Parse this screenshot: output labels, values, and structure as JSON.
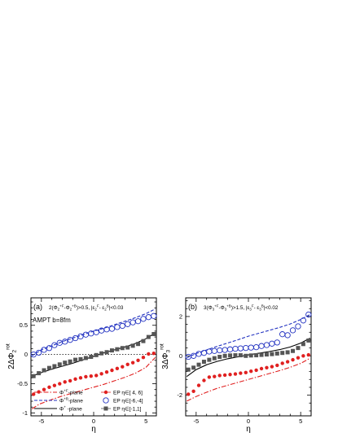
{
  "chart_data": [
    {
      "type": "scatter",
      "panel_label": "(a)",
      "header": "2(Φ2+F−Φ2+B)>0.5, |ε2F−ε2B|<0.03",
      "header_parts": {
        "lead": "2(Φ",
        "s1": "2",
        "p1": "+F",
        "mid": "-Φ",
        "s2": "2",
        "p2": "+B",
        "tail": ")>0.5, |ε",
        "s3": "2",
        "p3": "F",
        "dash": "- ε",
        "s4": "2",
        "p4": "B",
        "end": "|<0.03"
      },
      "annotation": "AMPT b=8fm",
      "ylabel": "2ΔΦ2rot",
      "ylabel_parts": {
        "coef": "2ΔΦ",
        "sub": "2",
        "sup": "rot"
      },
      "xlabel": "η",
      "xlim": [
        -6,
        6
      ],
      "ylim": [
        -1.05,
        0.97
      ],
      "xticks": [
        "-5",
        "0",
        "5"
      ],
      "xtick_values": [
        -5,
        0,
        5
      ],
      "yticks": [
        "-1",
        "-0.5",
        "0",
        "0.5"
      ],
      "ytick_values": [
        -1,
        -0.5,
        0,
        0.5
      ],
      "zero_line": true,
      "x": [
        -5.75,
        -5.25,
        -4.75,
        -4.25,
        -3.75,
        -3.25,
        -2.75,
        -2.25,
        -1.75,
        -1.25,
        -0.75,
        -0.25,
        0.25,
        0.75,
        1.25,
        1.75,
        2.25,
        2.75,
        3.25,
        3.75,
        4.25,
        4.75,
        5.25,
        5.75
      ],
      "lines": [
        {
          "name": "Φ+F-plane",
          "style": "dashdot",
          "color": "#e02020",
          "x": [
            -5.9,
            -5.2,
            -4.0,
            -3.0,
            -2.0,
            -1.0,
            0.0,
            1.0,
            2.0,
            3.0,
            4.0,
            5.0,
            5.9
          ],
          "values": [
            -0.93,
            -0.85,
            -0.77,
            -0.71,
            -0.66,
            -0.61,
            -0.56,
            -0.51,
            -0.45,
            -0.39,
            -0.32,
            -0.22,
            -0.05
          ]
        },
        {
          "name": "Φ+B-plane",
          "style": "dashed",
          "color": "#2030c0",
          "x": [
            -5.9,
            -5.0,
            -4.0,
            -3.0,
            -2.0,
            -1.0,
            0.0,
            1.0,
            2.0,
            3.0,
            4.0,
            5.0,
            5.9
          ],
          "values": [
            -0.02,
            0.08,
            0.15,
            0.22,
            0.28,
            0.34,
            0.4,
            0.45,
            0.51,
            0.57,
            0.63,
            0.7,
            0.78
          ]
        },
        {
          "name": "Φ+-plane",
          "style": "solid",
          "color": "#000000",
          "x": [
            -5.9,
            -5.0,
            -4.0,
            -3.0,
            -2.0,
            -1.0,
            0.0,
            1.0,
            2.0,
            3.0,
            4.0,
            5.0,
            5.9
          ],
          "values": [
            -0.37,
            -0.31,
            -0.25,
            -0.2,
            -0.15,
            -0.09,
            -0.03,
            0.03,
            0.08,
            0.13,
            0.19,
            0.27,
            0.37
          ]
        }
      ],
      "series": [
        {
          "name": "EP η∈[4, 6]",
          "marker": "filled-circle",
          "color": "#e02020",
          "values": [
            -0.68,
            -0.64,
            -0.6,
            -0.56,
            -0.53,
            -0.5,
            -0.47,
            -0.45,
            -0.42,
            -0.4,
            -0.38,
            -0.37,
            -0.36,
            -0.33,
            -0.3,
            -0.27,
            -0.24,
            -0.21,
            -0.17,
            -0.14,
            -0.1,
            -0.05,
            0.01,
            0.02
          ]
        },
        {
          "name": "EP η∈[-6,-4]",
          "marker": "open-circle",
          "color": "#2030c0",
          "values": [
            0.0,
            0.03,
            0.08,
            0.11,
            0.16,
            0.2,
            0.22,
            0.25,
            0.28,
            0.31,
            0.34,
            0.36,
            0.38,
            0.41,
            0.43,
            0.44,
            0.47,
            0.49,
            0.52,
            0.55,
            0.57,
            0.61,
            0.64,
            0.66
          ]
        },
        {
          "name": "EP η∈[-1,1]",
          "marker": "filled-square",
          "color": "#555555",
          "values": [
            -0.37,
            -0.32,
            -0.27,
            -0.23,
            -0.2,
            -0.17,
            -0.14,
            -0.12,
            -0.09,
            -0.08,
            -0.06,
            -0.04,
            -0.01,
            0.02,
            0.04,
            0.07,
            0.09,
            0.11,
            0.12,
            0.15,
            0.18,
            0.23,
            0.3,
            0.35
          ]
        }
      ],
      "legend": {
        "rows": [
          {
            "line": "Φ+F-plane",
            "line_parts": {
              "a": "Φ",
              "s": "+F",
              "b": "-plane"
            },
            "marker": "EP  η∈[ 4, 6]"
          },
          {
            "line": "Φ+B-plane",
            "line_parts": {
              "a": "Φ",
              "s": "+B",
              "b": "-plane"
            },
            "marker": "EP  η∈[-6,-4]"
          },
          {
            "line": "Φ+-plane",
            "line_parts": {
              "a": "Φ",
              "s": "+",
              "b": " -plane"
            },
            "marker": "EP  η∈[-1,1]"
          }
        ],
        "position": "bottom-right"
      }
    },
    {
      "type": "scatter",
      "panel_label": "(b)",
      "header": "3(Φ3+F−Φ3+B)>1.5, |ε3F−ε3B|<0.02",
      "header_parts": {
        "lead": "3(Φ",
        "s1": "3",
        "p1": "+F",
        "mid": "-Φ",
        "s2": "3",
        "p2": "+B",
        "tail": ")>1.5, |ε",
        "s3": "3",
        "p3": "F",
        "dash": "- ε",
        "s4": "3",
        "p4": "B",
        "end": "|<0.02"
      },
      "ylabel": "3ΔΦ3rot",
      "ylabel_parts": {
        "coef": "3ΔΦ",
        "sub": "3",
        "sup": "rot"
      },
      "xlabel": "η",
      "xlim": [
        -6,
        6
      ],
      "ylim": [
        -3.05,
        2.95
      ],
      "xticks": [
        "-5",
        "0",
        "5"
      ],
      "xtick_values": [
        -5,
        0,
        5
      ],
      "yticks": [
        "-2",
        "0",
        "2"
      ],
      "ytick_values": [
        -2,
        0,
        2
      ],
      "zero_line": false,
      "x": [
        -5.75,
        -5.25,
        -4.75,
        -4.25,
        -3.75,
        -3.25,
        -2.75,
        -2.25,
        -1.75,
        -1.25,
        -0.75,
        -0.25,
        0.25,
        0.75,
        1.25,
        1.75,
        2.25,
        2.75,
        3.25,
        3.75,
        4.25,
        4.75,
        5.25,
        5.75
      ],
      "lines": [
        {
          "name": "Φ+F-plane",
          "style": "dashdot",
          "color": "#e02020",
          "x": [
            -5.9,
            -5.0,
            -4.0,
            -3.0,
            -2.0,
            -1.0,
            0.0,
            1.0,
            2.0,
            3.0,
            4.0,
            5.0,
            5.9
          ],
          "values": [
            -2.3,
            -2.07,
            -1.85,
            -1.65,
            -1.5,
            -1.35,
            -1.2,
            -1.05,
            -0.9,
            -0.75,
            -0.58,
            -0.38,
            -0.12
          ]
        },
        {
          "name": "Φ+B-plane",
          "style": "dashed",
          "color": "#2030c0",
          "x": [
            -5.9,
            -5.0,
            -4.0,
            -3.0,
            -2.0,
            -1.0,
            0.0,
            1.0,
            2.0,
            3.0,
            4.0,
            5.0,
            5.9
          ],
          "values": [
            -0.1,
            0.12,
            0.3,
            0.48,
            0.65,
            0.82,
            1.0,
            1.15,
            1.3,
            1.45,
            1.62,
            1.85,
            2.1
          ]
        },
        {
          "name": "Φ+-plane",
          "style": "solid",
          "color": "#000000",
          "x": [
            -5.9,
            -5.0,
            -4.0,
            -3.0,
            -2.0,
            -1.0,
            0.0,
            1.0,
            2.0,
            3.0,
            4.0,
            5.0,
            5.9
          ],
          "values": [
            -1.05,
            -0.7,
            -0.45,
            -0.28,
            -0.15,
            -0.05,
            0.05,
            0.13,
            0.22,
            0.32,
            0.45,
            0.65,
            0.9
          ]
        }
      ],
      "series": [
        {
          "name": "EP η∈[4, 6]",
          "marker": "filled-circle",
          "color": "#e02020",
          "values": [
            -1.95,
            -1.8,
            -1.5,
            -1.25,
            -1.08,
            -1.05,
            -1.0,
            -0.98,
            -0.95,
            -0.92,
            -0.88,
            -0.85,
            -0.78,
            -0.73,
            -0.65,
            -0.6,
            -0.55,
            -0.48,
            -0.38,
            -0.3,
            -0.2,
            -0.1,
            0.0,
            0.05
          ]
        },
        {
          "name": "EP η∈[-6,-4]",
          "marker": "open-circle",
          "color": "#2030c0",
          "values": [
            -0.05,
            0.0,
            0.1,
            0.15,
            0.22,
            0.25,
            0.28,
            0.3,
            0.33,
            0.36,
            0.38,
            0.4,
            0.42,
            0.44,
            0.5,
            0.55,
            0.62,
            0.68,
            1.1,
            1.05,
            1.3,
            1.5,
            1.8,
            2.1
          ]
        },
        {
          "name": "EP η∈[-1,1]",
          "marker": "filled-square",
          "color": "#555555",
          "values": [
            -0.7,
            -0.6,
            -0.45,
            -0.3,
            -0.2,
            -0.12,
            -0.05,
            0.0,
            0.02,
            0.03,
            0.03,
            0.0,
            0.02,
            0.03,
            0.05,
            0.07,
            0.09,
            0.12,
            0.15,
            0.18,
            0.25,
            0.4,
            0.6,
            0.78
          ]
        }
      ]
    }
  ]
}
